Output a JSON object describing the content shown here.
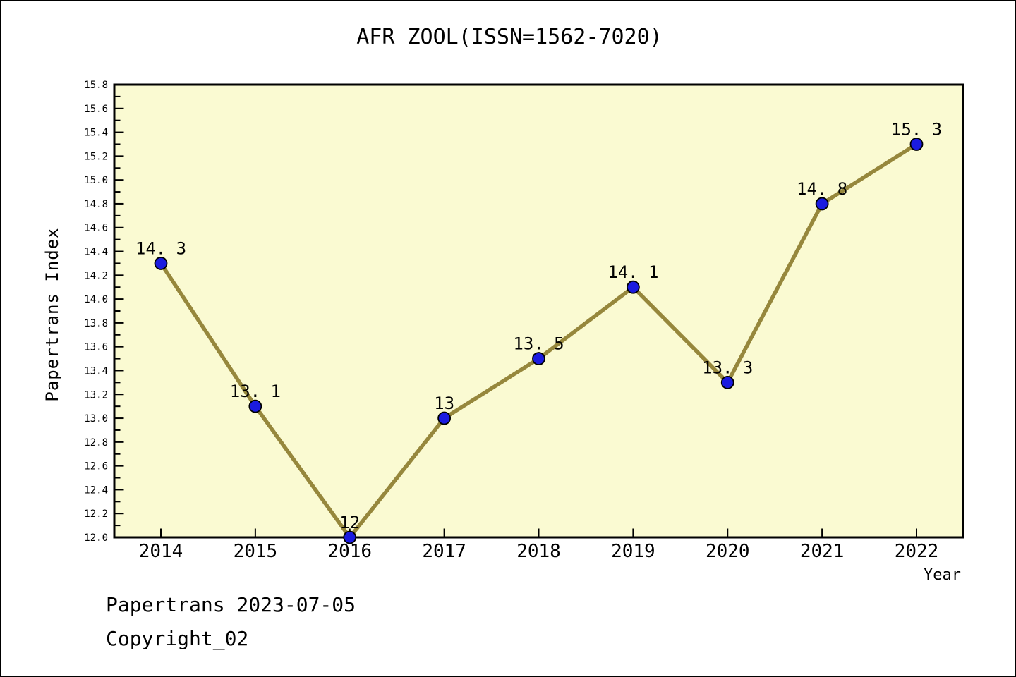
{
  "page": {
    "title": "AFR ZOOL(ISSN=1562-7020)",
    "footer_line1": "Papertrans 2023-07-05",
    "footer_line2": "Copyright_02"
  },
  "chart_data": {
    "type": "line",
    "title": "AFR ZOOL(ISSN=1562-7020)",
    "xlabel": "Year",
    "ylabel": "Papertrans Index",
    "x": [
      2014,
      2015,
      2016,
      2017,
      2018,
      2019,
      2020,
      2021,
      2022
    ],
    "series": [
      {
        "name": "Papertrans Index",
        "values": [
          14.3,
          13.1,
          12,
          13,
          13.5,
          14.1,
          13.3,
          14.8,
          15.3
        ],
        "point_labels": [
          "14. 3",
          "13. 1",
          "12",
          "13",
          "13. 5",
          "14. 1",
          "13. 3",
          "14. 8",
          "15. 3"
        ]
      }
    ],
    "ylim": [
      12.0,
      15.8
    ],
    "ytick_major_step": 0.2,
    "ytick_minor_step": 0.1,
    "grid": false,
    "legend": "none",
    "colors": {
      "line": "#96873C",
      "marker_fill": "#1b1be0",
      "marker_edge": "#000000",
      "plot_background": "#FAFAD2",
      "page_background": "#FFFFFF",
      "axis": "#000000",
      "text": "#000000"
    }
  }
}
